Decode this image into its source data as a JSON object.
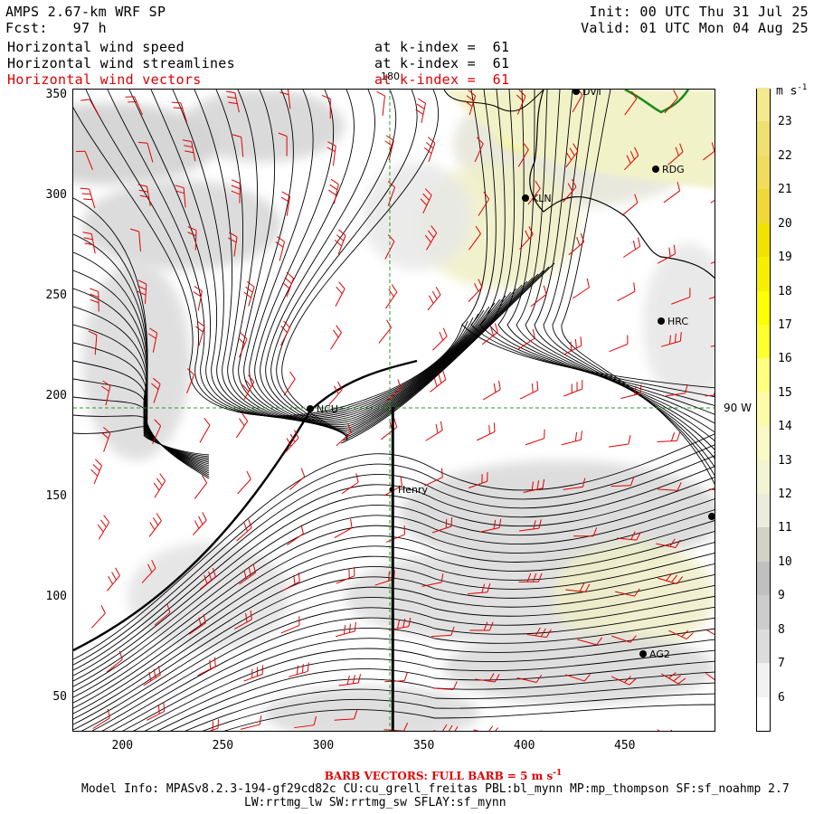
{
  "header": {
    "title": "AMPS 2.67-km WRF SP",
    "forecast": "Fcst:   97 h",
    "init": "Init: 00 UTC Thu 31 Jul 25",
    "valid": "Valid: 01 UTC Mon 04 Aug 25",
    "fields": [
      {
        "name": "Horizontal wind speed",
        "level": "at k-index =  61"
      },
      {
        "name": "Horizontal wind streamlines",
        "level": "at k-index =  61"
      },
      {
        "name": "Horizontal wind vectors",
        "level": "at k-index =  61"
      }
    ]
  },
  "axes": {
    "x_ticks": [
      "200",
      "250",
      "300",
      "350",
      "400",
      "450"
    ],
    "y_ticks": [
      "350",
      "300",
      "250",
      "200",
      "150",
      "100",
      "50"
    ],
    "x_range": [
      175,
      495
    ],
    "y_range": [
      33,
      353
    ]
  },
  "map": {
    "meridian_label": "180",
    "parallel_label": "90 W",
    "stations": [
      "DVT",
      "RDG",
      "KLN",
      "HRC",
      "NCU",
      "Henry",
      "AG2"
    ],
    "cross_section_x": 334
  },
  "colorbar": {
    "unit": "m s",
    "unit_exp": "-1",
    "labels": [
      "23",
      "22",
      "21",
      "20",
      "19",
      "18",
      "17",
      "16",
      "15",
      "14",
      "13",
      "12",
      "11",
      "10",
      "9",
      "8",
      "7",
      "6"
    ],
    "colors": [
      "#ffffff",
      "#f2f2f2",
      "#dcdcdc",
      "#cccccc",
      "#c0c0c0",
      "#d2d2c6",
      "#ececdc",
      "#f4f4d2",
      "#fafac4",
      "#fcfca8",
      "#ffff80",
      "#ffff30",
      "#ffff00",
      "#f6f000",
      "#f2e200",
      "#f0d838",
      "#f2dc5e",
      "#f0e070",
      "#f4e890"
    ]
  },
  "footer": {
    "barbs": "BARB VECTORS:  FULL BARB = 5 m s",
    "barbs_exp": "-1",
    "model_info": "Model Info: MPASv8.2.3-194-gf29cd82c CU:cu_grell_freitas PBL:bl_mynn MP:mp_thompson SF:sf_noahmp 2.7",
    "model_info2": "LW:rrtmg_lw SW:rrtmg_sw SFLAY:sf_mynn"
  }
}
